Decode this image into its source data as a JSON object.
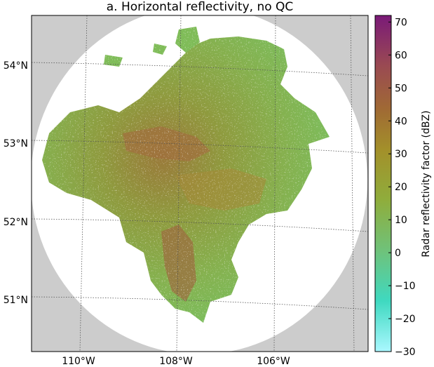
{
  "title": "a. Horizontal reflectivity, no QC",
  "map": {
    "lat_labels": [
      "54°N",
      "53°N",
      "52°N",
      "51°N"
    ],
    "lon_labels": [
      "110°W",
      "108°W",
      "106°W"
    ],
    "background_color": "#cccccc",
    "coverage_color": "#ffffff"
  },
  "colorbar": {
    "label": "Radar reflectivity factor (dBZ)",
    "min": -30,
    "max": 72,
    "ticks": [
      70,
      60,
      50,
      40,
      30,
      20,
      10,
      0,
      -10,
      -20,
      -30
    ],
    "tick_labels": [
      "70",
      "60",
      "50",
      "40",
      "30",
      "20",
      "10",
      "0",
      "−10",
      "−20",
      "−30"
    ],
    "colors": [
      "#aaf8ff",
      "#3fd9c0",
      "#6fc27a",
      "#8fad3c",
      "#a3902a",
      "#a06a34",
      "#9a4a52",
      "#7a1a78"
    ]
  }
}
